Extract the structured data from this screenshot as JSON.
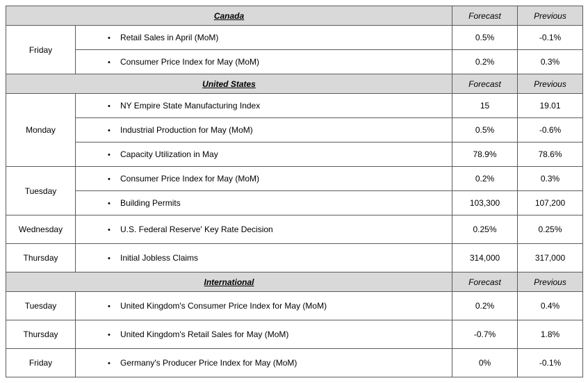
{
  "columns": {
    "forecast": "Forecast",
    "previous": "Previous"
  },
  "sections": [
    {
      "region": "Canada",
      "groups": [
        {
          "day": "Friday",
          "rows": [
            {
              "label": "Retail Sales in April (MoM)",
              "forecast": "0.5%",
              "previous": "-0.1%"
            },
            {
              "label": "Consumer Price Index for May (MoM)",
              "forecast": "0.2%",
              "previous": "0.3%"
            }
          ]
        }
      ]
    },
    {
      "region": "United States",
      "groups": [
        {
          "day": "Monday",
          "rows": [
            {
              "label": "NY Empire State Manufacturing Index",
              "forecast": "15",
              "previous": "19.01"
            },
            {
              "label": "Industrial Production for May (MoM)",
              "forecast": "0.5%",
              "previous": "-0.6%"
            },
            {
              "label": "Capacity Utilization in May",
              "forecast": "78.9%",
              "previous": "78.6%"
            }
          ]
        },
        {
          "day": "Tuesday",
          "rows": [
            {
              "label": "Consumer Price Index for May (MoM)",
              "forecast": "0.2%",
              "previous": "0.3%"
            },
            {
              "label": "Building Permits",
              "forecast": "103,300",
              "previous": "107,200"
            }
          ]
        },
        {
          "day": "Wednesday",
          "rows": [
            {
              "label": "U.S. Federal Reserve' Key Rate Decision",
              "forecast": "0.25%",
              "previous": "0.25%"
            }
          ]
        },
        {
          "day": "Thursday",
          "rows": [
            {
              "label": "Initial Jobless Claims",
              "forecast": "314,000",
              "previous": "317,000"
            }
          ]
        }
      ]
    },
    {
      "region": "International",
      "groups": [
        {
          "day": "Tuesday",
          "rows": [
            {
              "label": "United Kingdom's Consumer Price Index for May (MoM)",
              "forecast": "0.2%",
              "previous": "0.4%"
            }
          ]
        },
        {
          "day": "Thursday",
          "rows": [
            {
              "label": "United Kingdom's Retail Sales for May (MoM)",
              "forecast": "-0.7%",
              "previous": "1.8%"
            }
          ]
        },
        {
          "day": "Friday",
          "rows": [
            {
              "label": "Germany's Producer Price Index for May (MoM)",
              "forecast": "0%",
              "previous": "-0.1%"
            }
          ]
        }
      ]
    }
  ]
}
